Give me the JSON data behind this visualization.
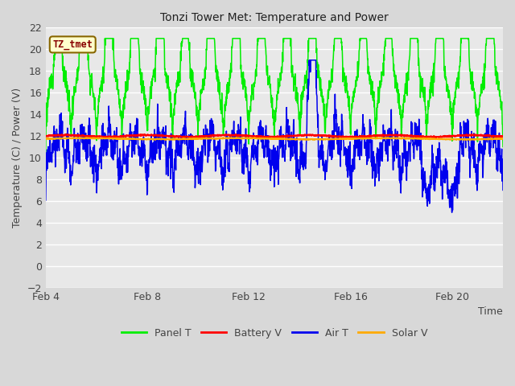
{
  "title": "Tonzi Tower Met: Temperature and Power",
  "xlabel": "Time",
  "ylabel": "Temperature (C) / Power (V)",
  "ylim": [
    -2,
    22
  ],
  "yticks": [
    -2,
    0,
    2,
    4,
    6,
    8,
    10,
    12,
    14,
    16,
    18,
    20,
    22
  ],
  "xtick_labels": [
    "Feb 4",
    "Feb 8",
    "Feb 12",
    "Feb 16",
    "Feb 20"
  ],
  "xtick_positions": [
    0,
    4,
    8,
    12,
    16
  ],
  "xlim": [
    0,
    18
  ],
  "outer_bg": "#d8d8d8",
  "plot_bg": "#e8e8e8",
  "grid_color": "#ffffff",
  "annotation_text": "TZ_tmet",
  "annotation_bg": "#ffffcc",
  "annotation_border": "#886600",
  "annotation_text_color": "#880000",
  "panel_t_color": "#00ee00",
  "battery_v_color": "#ff0000",
  "air_t_color": "#0000ee",
  "solar_v_color": "#ffaa00",
  "legend_labels": [
    "Panel T",
    "Battery V",
    "Air T",
    "Solar V"
  ]
}
